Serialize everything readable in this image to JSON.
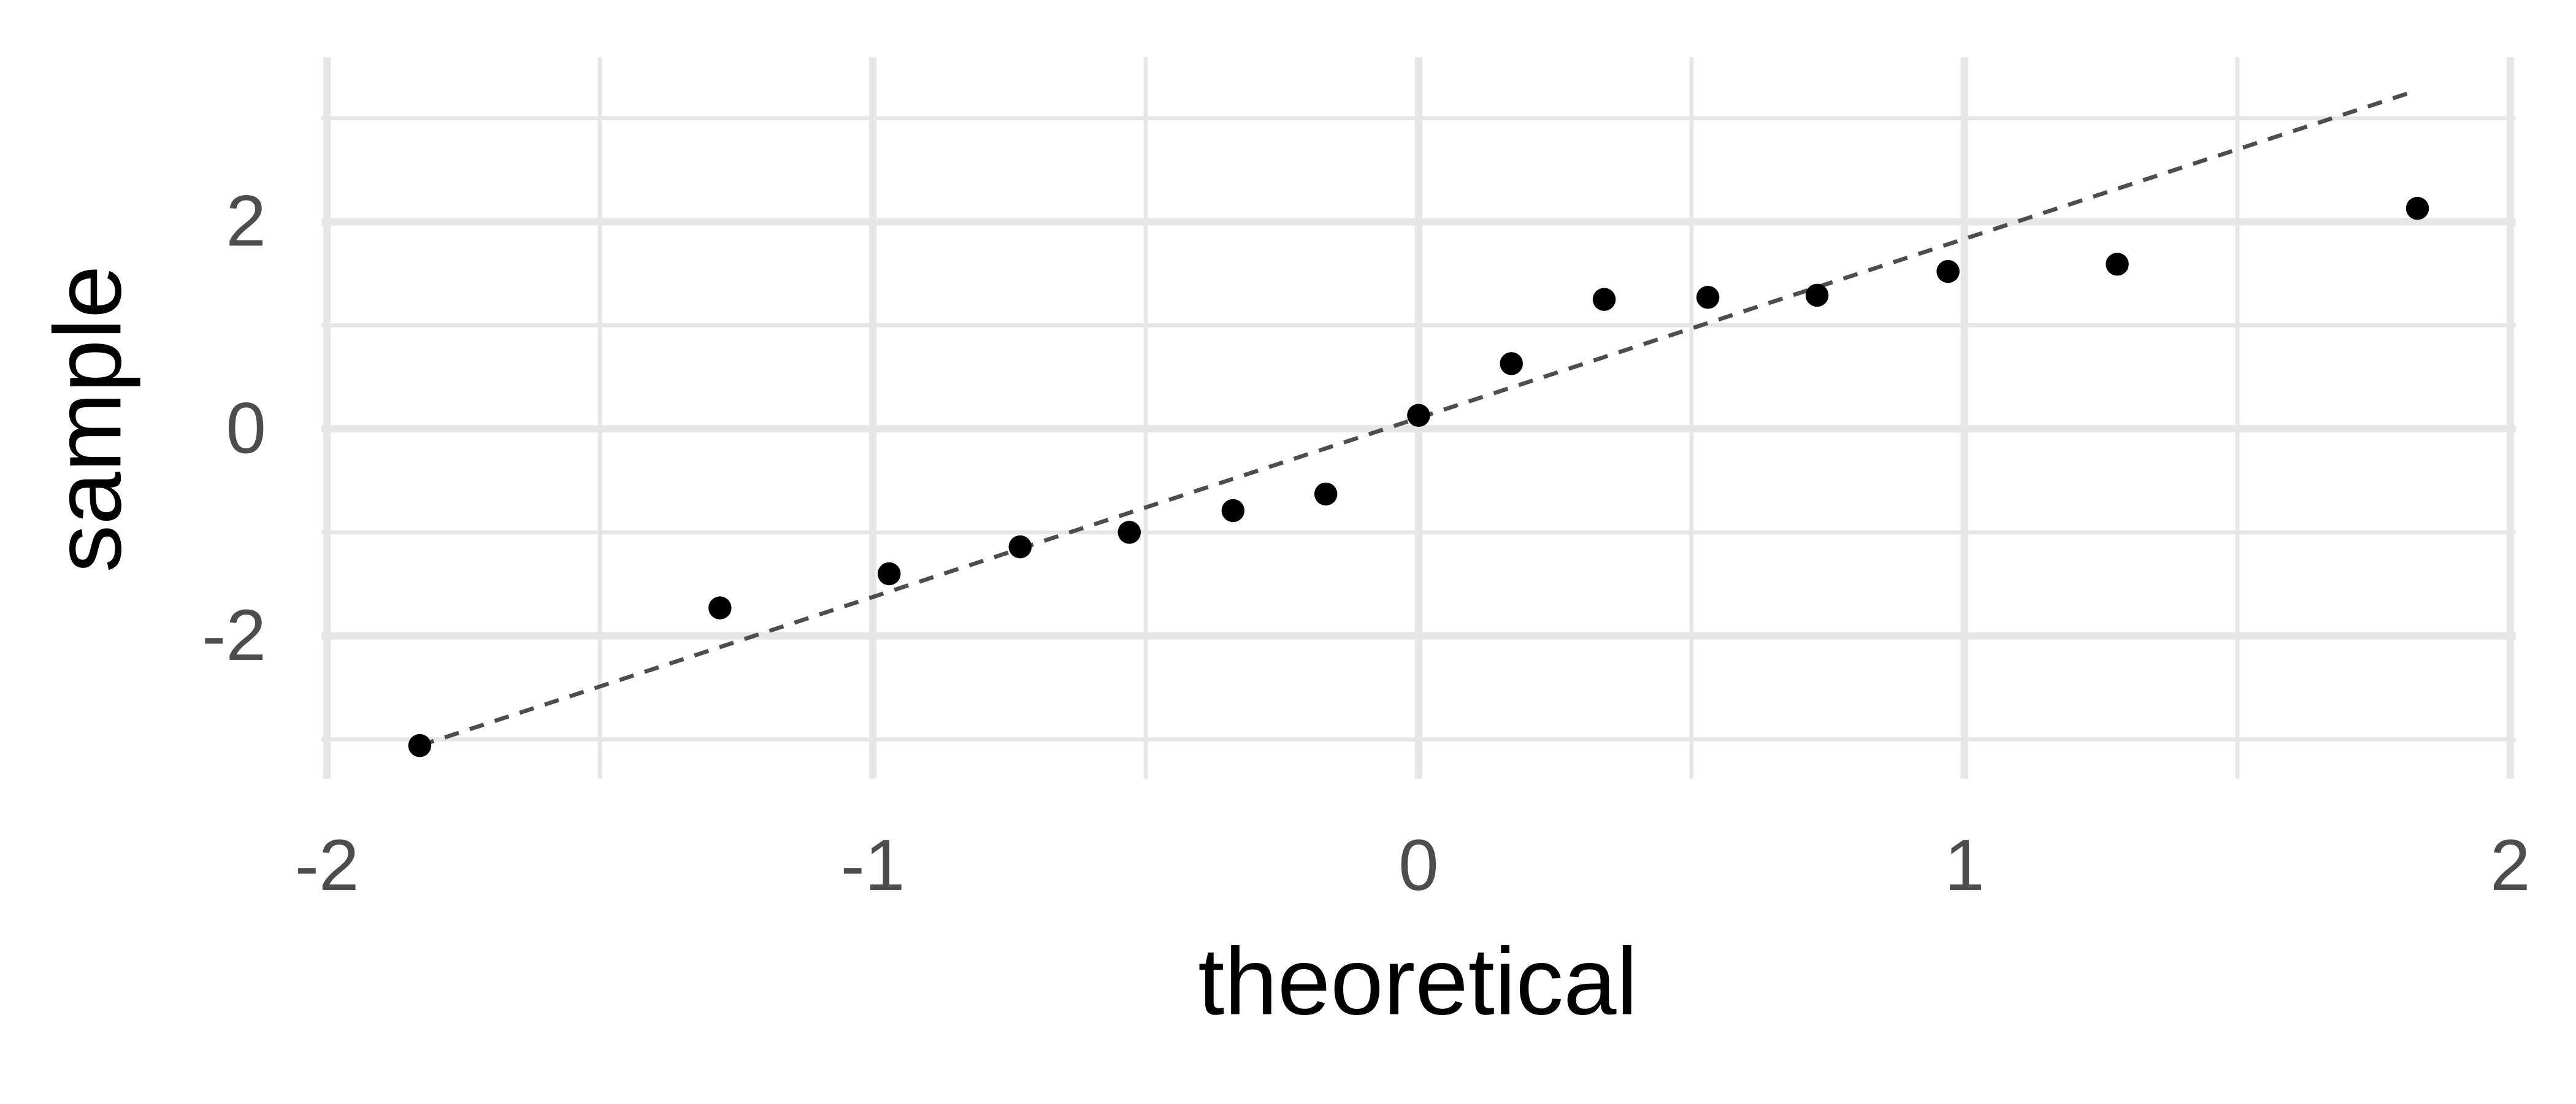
{
  "chart_data": {
    "type": "qq",
    "x_label": "theoretical",
    "y_label": "sample",
    "x": [
      -1.83,
      -1.28,
      -0.97,
      -0.73,
      -0.53,
      -0.34,
      -0.17,
      0.0,
      0.17,
      0.34,
      0.53,
      0.73,
      0.97,
      1.28,
      1.83
    ],
    "y": [
      -3.06,
      -1.73,
      -1.4,
      -1.14,
      -1.0,
      -0.79,
      -0.63,
      0.13,
      0.63,
      1.25,
      1.27,
      1.29,
      1.52,
      1.59,
      2.13
    ],
    "color": "#000000",
    "reference_line": {
      "x": [
        -1.83,
        1.83
      ],
      "y": [
        -3.06,
        3.27
      ],
      "color": "#4d4d4d",
      "dashed": true
    },
    "xlim": [
      -2.01,
      2.01
    ],
    "ylim": [
      -3.38,
      3.59
    ],
    "xticks": [
      -2,
      -1,
      0,
      1,
      2
    ],
    "yticks": [
      -2,
      0,
      2
    ],
    "xminor": [
      -1.5,
      -0.5,
      0.5,
      1.5
    ],
    "yminor": [
      -3,
      -1,
      1,
      3
    ],
    "grid": true
  }
}
